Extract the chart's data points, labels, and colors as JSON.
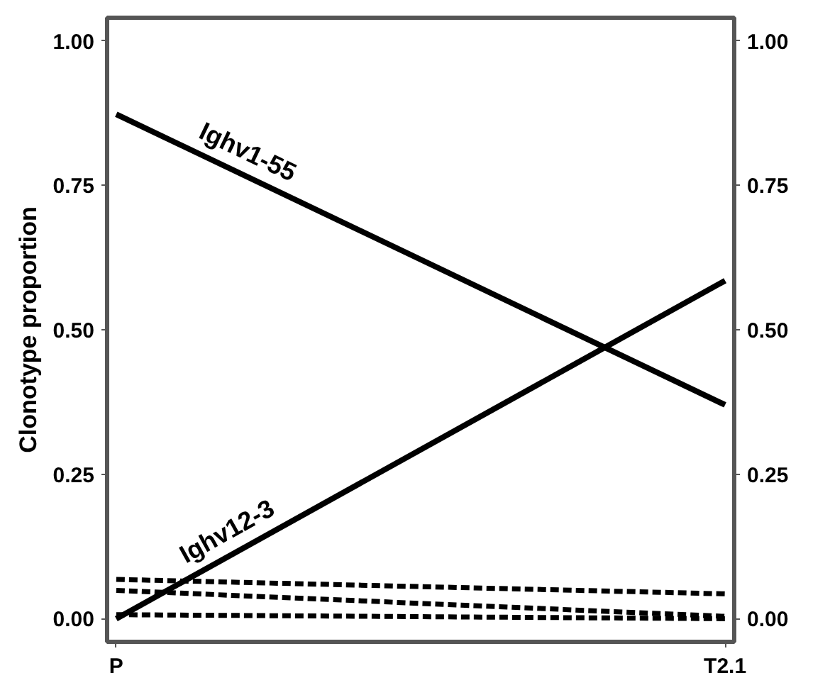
{
  "chart_data": {
    "type": "line",
    "ylabel": "Clonotype proportion",
    "categories": [
      "P",
      "T2.1"
    ],
    "series": [
      {
        "name": "Ighv1-55",
        "color": "#000000",
        "values": [
          0.873,
          0.37
        ],
        "line_style": "solid"
      },
      {
        "name": "Ighv12-3",
        "color": "#000000",
        "values": [
          0.0,
          0.585
        ],
        "line_style": "solid"
      },
      {
        "color": "#000000",
        "values": [
          0.068,
          0.043
        ],
        "line_style": "dashed"
      },
      {
        "color": "#000000",
        "values": [
          0.049,
          0.004
        ],
        "line_style": "dashed"
      },
      {
        "color": "#000000",
        "values": [
          0.007,
          0.0
        ],
        "line_style": "dashed"
      }
    ],
    "ylim": [
      -0.04,
      1.04
    ],
    "yticks": [
      {
        "value": 0,
        "label": "0.00"
      },
      {
        "value": 0.25,
        "label": "0.25"
      },
      {
        "value": 0.5,
        "label": "0.50"
      },
      {
        "value": 0.75,
        "label": "0.75"
      },
      {
        "value": 1,
        "label": "1.00"
      }
    ],
    "y2lim": [
      -0.04,
      1.04
    ],
    "y2ticks": [
      {
        "value": 0,
        "label": "0.00"
      },
      {
        "value": 0.25,
        "label": "0.25"
      },
      {
        "value": 0.5,
        "label": "0.50"
      },
      {
        "value": 0.75,
        "label": "0.75"
      },
      {
        "value": 1,
        "label": "1.00"
      }
    ],
    "grid": false
  }
}
